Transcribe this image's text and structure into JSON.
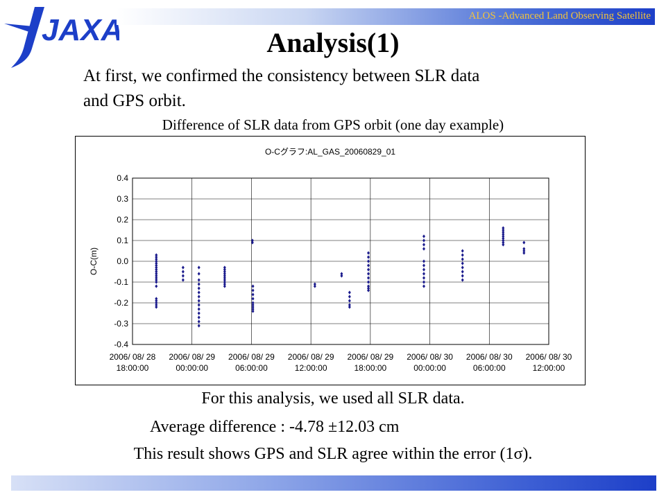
{
  "header": {
    "logo_text": "JAXA",
    "banner_text": "ALOS -Advanced Land Observing Satellite"
  },
  "slide": {
    "title": "Analysis(1)",
    "intro_line1": "At first, we confirmed the consistency between SLR data",
    "intro_line2": "and GPS orbit.",
    "chart_caption": "Difference of SLR data from GPS orbit (one day example)",
    "analysis_note": "For this analysis, we used all SLR data.",
    "average_difference": "Average difference : -4.78 ±12.03 cm",
    "conclusion": "This result shows GPS and SLR agree within the error (1σ)."
  },
  "colors": {
    "marker": "#1a1a8c",
    "banner_text": "#f3c43c",
    "logo": "#1d3fc8"
  },
  "chart_data": {
    "type": "scatter",
    "title": "O-Cグラフ:AL_GAS_20060829_01",
    "ylabel": "O-C(m)",
    "xlabel": "",
    "ylim": [
      -0.4,
      0.4
    ],
    "yticks": [
      0.4,
      0.3,
      0.2,
      0.1,
      0.0,
      -0.1,
      -0.2,
      -0.3,
      -0.4
    ],
    "ytick_labels": [
      "0.4",
      "0.3",
      "0.2",
      "0.1",
      "0.0",
      "-0.1",
      "-0.2",
      "-0.3",
      "-0.4"
    ],
    "xlim": [
      "2006/08/28 18:00:00",
      "2006/08/30 12:00:00"
    ],
    "xtick_labels": [
      {
        "date": "2006/ 08/ 28",
        "time": "18:00:00"
      },
      {
        "date": "2006/ 08/ 29",
        "time": "00:00:00"
      },
      {
        "date": "2006/ 08/ 29",
        "time": "06:00:00"
      },
      {
        "date": "2006/ 08/ 29",
        "time": "12:00:00"
      },
      {
        "date": "2006/ 08/ 29",
        "time": "18:00:00"
      },
      {
        "date": "2006/ 08/ 30",
        "time": "00:00:00"
      },
      {
        "date": "2006/ 08/ 30",
        "time": "06:00:00"
      },
      {
        "date": "2006/ 08/ 30",
        "time": "12:00:00"
      }
    ],
    "grid": true,
    "legend": "none",
    "passes": [
      {
        "hours": 2.4,
        "y": [
          0.03,
          0.02,
          0.01,
          0.0,
          -0.01,
          -0.02,
          -0.03,
          -0.04,
          -0.05,
          -0.06,
          -0.07,
          -0.08,
          -0.09,
          -0.1,
          -0.12,
          -0.18,
          -0.19,
          -0.2,
          -0.21,
          -0.22
        ]
      },
      {
        "hours": 5.1,
        "y": [
          -0.03,
          -0.05,
          -0.07,
          -0.09
        ]
      },
      {
        "hours": 6.7,
        "y": [
          -0.03,
          -0.06,
          -0.09,
          -0.11,
          -0.13,
          -0.15,
          -0.17,
          -0.19,
          -0.21,
          -0.23,
          -0.25,
          -0.27,
          -0.29,
          -0.31
        ]
      },
      {
        "hours": 9.3,
        "y": [
          -0.03,
          -0.04,
          -0.05,
          -0.06,
          -0.07,
          -0.08,
          -0.09,
          -0.1,
          -0.11,
          -0.12
        ]
      },
      {
        "hours": 12.1,
        "y": [
          0.1,
          0.09
        ]
      },
      {
        "hours": 12.15,
        "y": [
          -0.12,
          -0.14,
          -0.16,
          -0.18,
          -0.2,
          -0.21,
          -0.22,
          -0.23,
          -0.24
        ]
      },
      {
        "hours": 18.4,
        "y": [
          -0.11,
          -0.12
        ]
      },
      {
        "hours": 21.1,
        "y": [
          -0.06,
          -0.07
        ]
      },
      {
        "hours": 21.9,
        "y": [
          -0.15,
          -0.17,
          -0.19,
          -0.21,
          -0.22
        ]
      },
      {
        "hours": 23.8,
        "y": [
          0.04,
          0.02,
          0.0,
          -0.02,
          -0.04,
          -0.06,
          -0.08,
          -0.1,
          -0.12,
          -0.13,
          -0.14
        ]
      },
      {
        "hours": 29.4,
        "y": [
          0.12,
          0.1,
          0.08,
          0.06,
          0.0,
          -0.02,
          -0.04,
          -0.06,
          -0.08,
          -0.1,
          -0.12
        ]
      },
      {
        "hours": 33.3,
        "y": [
          0.05,
          0.03,
          0.01,
          -0.01,
          -0.03,
          -0.05,
          -0.07,
          -0.09
        ]
      },
      {
        "hours": 37.4,
        "y": [
          0.16,
          0.15,
          0.14,
          0.13,
          0.12,
          0.11,
          0.1,
          0.09,
          0.08
        ]
      },
      {
        "hours": 39.5,
        "y": [
          0.09,
          0.06,
          0.05,
          0.04
        ]
      }
    ]
  }
}
